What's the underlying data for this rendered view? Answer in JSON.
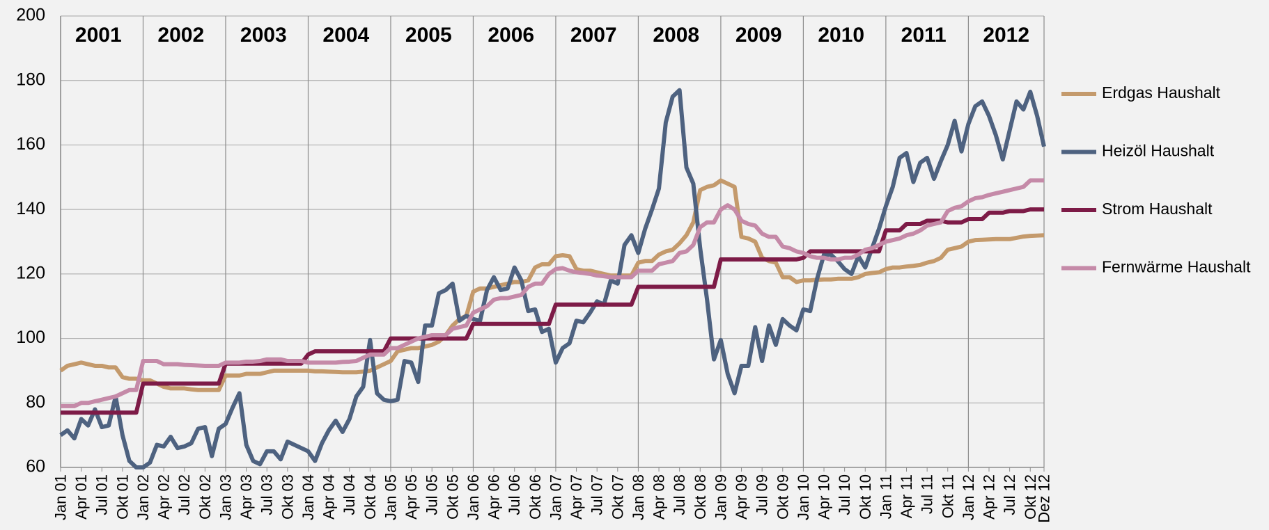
{
  "chart_data": {
    "type": "line",
    "annotations": [
      "2001",
      "2002",
      "2003",
      "2004",
      "2005",
      "2006",
      "2007",
      "2008",
      "2009",
      "2010",
      "2011",
      "2012"
    ],
    "categories": [
      "Jan 01",
      null,
      null,
      "Apr 01",
      null,
      null,
      "Jul 01",
      null,
      null,
      "Okt 01",
      null,
      null,
      "Jan 02",
      null,
      null,
      "Apr 02",
      null,
      null,
      "Jul 02",
      null,
      null,
      "Okt 02",
      null,
      null,
      "Jan 03",
      null,
      null,
      "Apr 03",
      null,
      null,
      "Jul 03",
      null,
      null,
      "Okt 03",
      null,
      null,
      "Jan 04",
      null,
      null,
      "Apr 04",
      null,
      null,
      "Jul 04",
      null,
      null,
      "Okt 04",
      null,
      null,
      "Jan 05",
      null,
      null,
      "Apr 05",
      null,
      null,
      "Jul 05",
      null,
      null,
      "Okt 05",
      null,
      null,
      "Jan 06",
      null,
      null,
      "Apr 06",
      null,
      null,
      "Jul 06",
      null,
      null,
      "Okt 06",
      null,
      null,
      "Jan 07",
      null,
      null,
      "Apr 07",
      null,
      null,
      "Jul 07",
      null,
      null,
      "Okt 07",
      null,
      null,
      "Jan 08",
      null,
      null,
      "Apr 08",
      null,
      null,
      "Jul 08",
      null,
      null,
      "Okt 08",
      null,
      null,
      "Jan 09",
      null,
      null,
      "Apr 09",
      null,
      null,
      "Jul 09",
      null,
      null,
      "Okt 09",
      null,
      null,
      "Jan 10",
      null,
      null,
      "Apr 10",
      null,
      null,
      "Jul 10",
      null,
      null,
      "Okt 10",
      null,
      null,
      "Jan 11",
      null,
      null,
      "Apr 11",
      null,
      null,
      "Jul 11",
      null,
      null,
      "Okt 11",
      null,
      null,
      "Jan 12",
      null,
      null,
      "Apr 12",
      null,
      null,
      "Jul 12",
      null,
      null,
      "Okt 12",
      null,
      "Dez 12"
    ],
    "series": [
      {
        "name": "Erdgas Haushalt",
        "color": "#c49a6c",
        "values": [
          90,
          91.5,
          92,
          92.5,
          92,
          91.5,
          91.5,
          91,
          91,
          88,
          87.5,
          87.5,
          87,
          87,
          86,
          85,
          84.5,
          84.5,
          84.5,
          84.2,
          84,
          84,
          84,
          84,
          88.5,
          88.5,
          88.5,
          89,
          89,
          89,
          89.5,
          90,
          90,
          90,
          90,
          90,
          90,
          89.8,
          89.8,
          89.7,
          89.6,
          89.5,
          89.5,
          89.5,
          89.7,
          90,
          91,
          92,
          93,
          96,
          96.5,
          97,
          97,
          97.5,
          98,
          99,
          101,
          104,
          106,
          107,
          114.5,
          115.5,
          115.5,
          116,
          116.5,
          117,
          117.5,
          117.5,
          118,
          122,
          123,
          123,
          125.5,
          125.8,
          125.5,
          121.5,
          121,
          121,
          120.5,
          120,
          119.5,
          119.5,
          119.5,
          119.5,
          123.5,
          124,
          124,
          126,
          127,
          127.5,
          129.5,
          132,
          136,
          146,
          147,
          147.5,
          149,
          148,
          147,
          131.5,
          131,
          130,
          125,
          124,
          123.5,
          119,
          119,
          117.5,
          118,
          118,
          118.2,
          118.3,
          118.3,
          118.5,
          118.5,
          118.5,
          119,
          120,
          120.3,
          120.5,
          121.5,
          122,
          122,
          122.3,
          122.5,
          122.8,
          123.5,
          124,
          125,
          127.5,
          128,
          128.5,
          130,
          130.5,
          130.6,
          130.7,
          130.8,
          130.8,
          130.8,
          131.2,
          131.6,
          131.8,
          131.9,
          132
        ]
      },
      {
        "name": "Heizöl Haushalt",
        "color": "#4e6280",
        "values": [
          70,
          71.5,
          69,
          75,
          73,
          78,
          72.5,
          73,
          82,
          70,
          62,
          60,
          60,
          61.5,
          67,
          66.5,
          69.5,
          66,
          66.5,
          67.5,
          72,
          72.5,
          63.5,
          72,
          73.5,
          78.5,
          83,
          67,
          62,
          61,
          65,
          65,
          62.5,
          68,
          67,
          66,
          65,
          62,
          67.5,
          71.5,
          74.5,
          71,
          75,
          82,
          85,
          99.5,
          83,
          81,
          80.5,
          81,
          93,
          92.5,
          86.5,
          104,
          104,
          114,
          115,
          117,
          105.5,
          107,
          106,
          105.5,
          115,
          119,
          115,
          115.5,
          122,
          118,
          108.5,
          109,
          102,
          103,
          92.5,
          97,
          98.5,
          105.5,
          105,
          108,
          111.5,
          110.5,
          118,
          117,
          129,
          132,
          126.5,
          134,
          140,
          146.5,
          167,
          175,
          177,
          153,
          148,
          128,
          112,
          93.5,
          99.5,
          89,
          83,
          91.5,
          91.5,
          103.5,
          93,
          104,
          98,
          106,
          104,
          102.5,
          109,
          108.5,
          118.5,
          126,
          126,
          124,
          121.5,
          120,
          125.5,
          122,
          128,
          134,
          141,
          147,
          156,
          157.5,
          148.5,
          154.5,
          156,
          149.5,
          155,
          160,
          167.5,
          158,
          166.5,
          172,
          173.5,
          169,
          163,
          155.5,
          164.5,
          173.5,
          171,
          176.5,
          169,
          159.5
        ]
      },
      {
        "name": "Strom Haushalt",
        "color": "#7d1b47",
        "values": [
          77,
          77,
          77,
          77,
          77,
          77,
          77,
          77,
          77,
          77,
          77,
          77,
          86,
          86,
          86,
          86,
          86,
          86,
          86,
          86,
          86,
          86,
          86,
          86,
          92.2,
          92.2,
          92.2,
          92.2,
          92.2,
          92.2,
          92.2,
          92.2,
          92.2,
          92.2,
          92.2,
          92.2,
          95,
          96,
          96,
          96,
          96,
          96,
          96,
          96,
          96,
          96,
          96,
          96,
          100,
          100,
          100,
          100,
          100,
          100,
          100,
          100,
          100,
          100,
          100,
          100,
          104.5,
          104.5,
          104.5,
          104.5,
          104.5,
          104.5,
          104.5,
          104.5,
          104.5,
          104.5,
          104.5,
          104.5,
          110.5,
          110.5,
          110.5,
          110.5,
          110.5,
          110.5,
          110.5,
          110.5,
          110.5,
          110.5,
          110.5,
          110.5,
          116,
          116,
          116,
          116,
          116,
          116,
          116,
          116,
          116,
          116,
          116,
          116,
          124.5,
          124.5,
          124.5,
          124.5,
          124.5,
          124.5,
          124.5,
          124.5,
          124.5,
          124.5,
          124.5,
          124.5,
          125,
          127,
          127,
          127,
          127,
          127,
          127,
          127,
          127,
          127,
          127,
          127,
          133.5,
          133.5,
          133.5,
          135.5,
          135.5,
          135.5,
          136.5,
          136.5,
          136.5,
          136,
          136,
          136,
          137,
          137,
          137,
          139,
          139,
          139,
          139.5,
          139.5,
          139.5,
          140,
          140,
          140
        ]
      },
      {
        "name": "Fernwärme Haushalt",
        "color": "#c58aa8",
        "values": [
          79,
          79,
          79,
          80,
          80,
          80.5,
          81,
          81.5,
          82,
          83,
          84,
          84,
          93,
          93,
          93,
          92,
          92,
          92,
          91.8,
          91.7,
          91.6,
          91.5,
          91.5,
          91.5,
          92.5,
          92.5,
          92.5,
          92.8,
          92.8,
          93,
          93.5,
          93.5,
          93.5,
          93,
          93,
          93,
          92.5,
          92.5,
          92.5,
          92.5,
          92.5,
          92.7,
          92.8,
          93,
          94,
          95,
          95,
          95,
          97,
          97,
          98,
          99,
          100,
          100.5,
          101,
          101,
          101,
          103,
          103.5,
          104,
          108,
          109,
          110,
          112,
          112.5,
          112.5,
          113,
          113.5,
          116,
          117,
          117,
          120,
          121.5,
          121.8,
          121,
          120.5,
          120.3,
          120,
          119.5,
          119.3,
          119,
          119,
          119,
          119,
          121,
          121,
          121,
          123,
          123.5,
          124,
          126.5,
          127,
          129,
          134.5,
          136,
          136,
          140,
          141.3,
          140,
          136.5,
          135.5,
          135,
          132.5,
          131.5,
          131.5,
          128.5,
          128,
          127,
          126.5,
          125.5,
          125,
          125,
          124.5,
          124.5,
          125,
          125,
          126,
          127.5,
          128,
          129,
          130,
          130.5,
          131,
          132,
          132.5,
          133.5,
          135,
          135.5,
          136,
          139.5,
          140.5,
          141,
          142.5,
          143.5,
          143.8,
          144.5,
          145,
          145.5,
          146,
          146.5,
          147,
          149,
          149,
          149
        ]
      }
    ],
    "ylim": [
      60,
      200
    ],
    "yticks": [
      60,
      80,
      100,
      120,
      140,
      160,
      180,
      200
    ],
    "grid": true,
    "legend": "right"
  }
}
